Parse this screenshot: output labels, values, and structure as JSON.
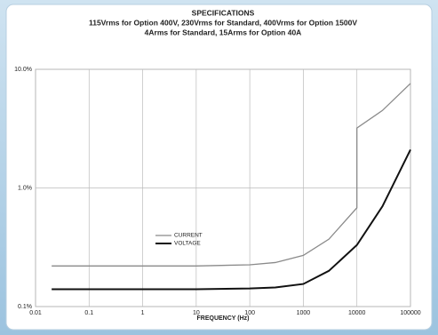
{
  "chart_data": {
    "type": "line",
    "title": "SPECIFICATIONS",
    "subtitle": [
      "115Vrms for Option 400V, 230Vrms for Standard, 400Vrms for Option 1500V",
      "4Arms for Standard, 15Arms for Option 40A"
    ],
    "x_label": "FREQUENCY (Hz)",
    "x": [
      0.02,
      1,
      10,
      100,
      300,
      1000,
      3000,
      10000,
      10000,
      30000,
      100000
    ],
    "series": [
      {
        "name": "CURRENT",
        "color": "#8a8a8a",
        "values": [
          0.22,
          0.22,
          0.22,
          0.225,
          0.235,
          0.27,
          0.37,
          0.68,
          3.2,
          4.5,
          7.6
        ]
      },
      {
        "name": "VOLTAGE",
        "color": "#111111",
        "values": [
          0.14,
          0.14,
          0.14,
          0.142,
          0.145,
          0.155,
          0.2,
          0.33,
          0.33,
          0.7,
          2.1
        ]
      }
    ],
    "xlim": [
      0.01,
      100000
    ],
    "xticks": [
      0.01,
      0.1,
      1,
      10,
      100,
      1000,
      10000,
      100000
    ],
    "ylim": [
      0.1,
      10
    ],
    "yticks": [
      {
        "value": 0.1,
        "label": "0.1%"
      },
      {
        "value": 1,
        "label": "1.0%"
      },
      {
        "value": 10,
        "label": "10.0%"
      }
    ],
    "x_log": true,
    "y_log": true,
    "grid": true,
    "legend_position": "lower-left"
  }
}
